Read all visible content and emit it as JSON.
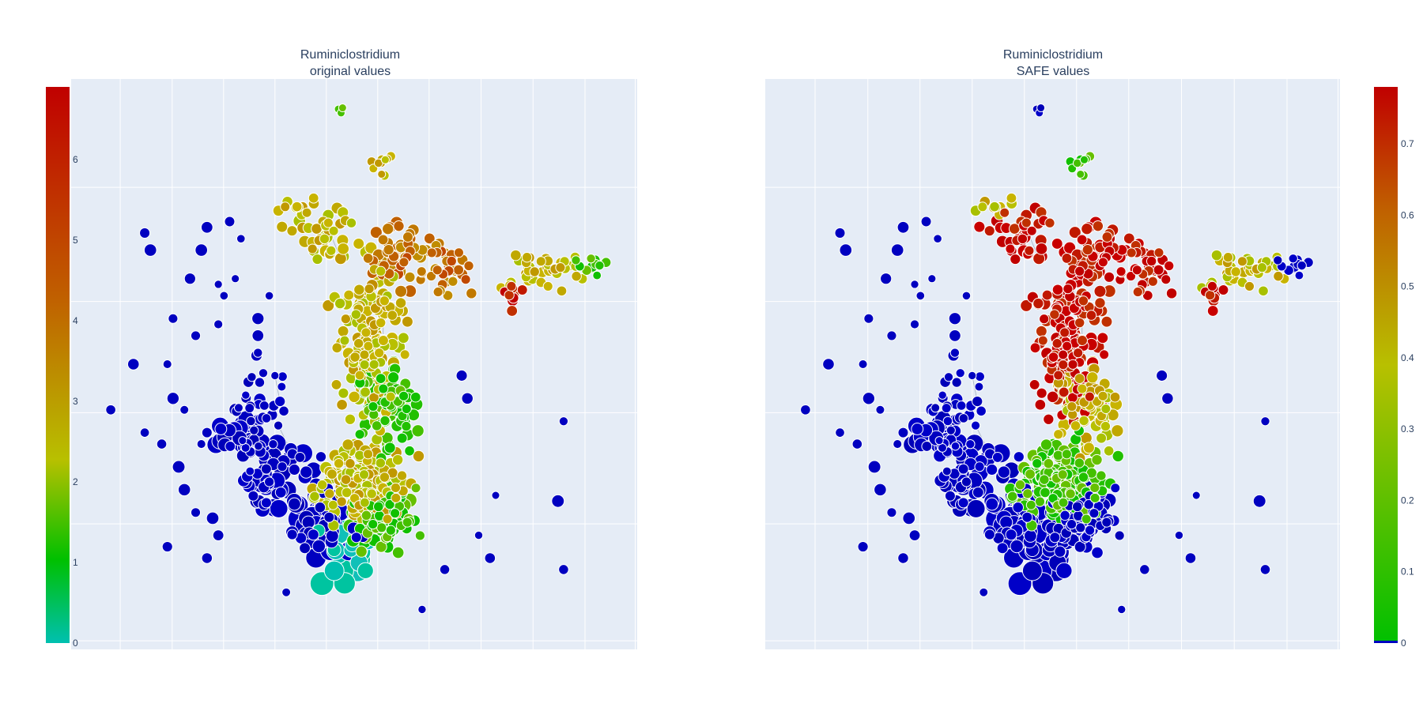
{
  "chart_data": [
    {
      "type": "scatter",
      "title": "Ruminiclostridium",
      "subtitle": "original values",
      "xlabel": "",
      "ylabel": "",
      "grid": true,
      "colorbar": {
        "side": "left",
        "range": [
          0,
          6.9
        ],
        "ticks": [
          "0",
          "1",
          "2",
          "3",
          "4",
          "5",
          "6"
        ],
        "tick_values": [
          0,
          1,
          2,
          3,
          4,
          5,
          6
        ],
        "colors": [
          "#00c0b0",
          "#00c000",
          "#b8c000",
          "#c06000",
          "#c00000"
        ]
      },
      "zero_color": "#0000c0",
      "marker_outline": "#ffffff",
      "edge_color": "#8a97ab"
    },
    {
      "type": "scatter",
      "title": "Ruminiclostridium",
      "subtitle": "SAFE values",
      "xlabel": "",
      "ylabel": "",
      "grid": true,
      "colorbar": {
        "side": "right",
        "range": [
          0,
          0.78
        ],
        "ticks": [
          "0",
          "0.1",
          "0.2",
          "0.3",
          "0.4",
          "0.5",
          "0.6",
          "0.7"
        ],
        "tick_values": [
          0,
          0.1,
          0.2,
          0.3,
          0.4,
          0.5,
          0.6,
          0.7
        ],
        "colors": [
          "#00c000",
          "#b8c000",
          "#c06000",
          "#c00000"
        ]
      },
      "zero_color": "#0000c0",
      "marker_outline": "#ffffff",
      "edge_color": "#8a97ab"
    }
  ],
  "colors": {
    "plot_background": "#e5ecf6",
    "gridline": "#ffffff",
    "page_background": "#ffffff",
    "text": "#2a3f5f"
  }
}
